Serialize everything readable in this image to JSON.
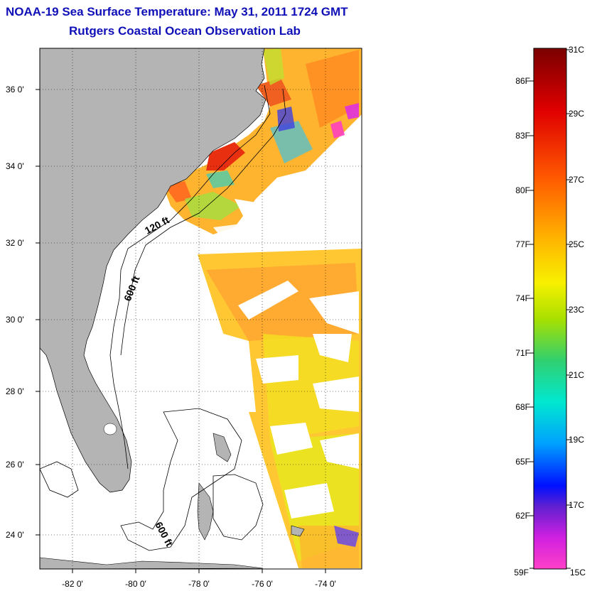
{
  "title": {
    "line1": "NOAA-19 Sea Surface Temperature:  May 31, 2011 1724 GMT",
    "line2": "Rutgers Coastal Ocean Observation Lab"
  },
  "map": {
    "lat_labels": [
      "36 0'",
      "34 0'",
      "32 0'",
      "30 0'",
      "28 0'",
      "26 0'",
      "24 0'"
    ],
    "lon_labels": [
      "-82 0'",
      "-80 0'",
      "-78 0'",
      "-76 0'",
      "-74 0'"
    ],
    "contour_labels": [
      "120 ft",
      "600 ft",
      "600 ft"
    ],
    "land_color": "#b4b4b4",
    "gridlines": "dotted"
  },
  "colorbar": {
    "fahrenheit": [
      "86F",
      "83F",
      "80F",
      "77F",
      "74F",
      "71F",
      "68F",
      "65F",
      "62F",
      "59F"
    ],
    "celsius": [
      "31C",
      "29C",
      "27C",
      "25C",
      "23C",
      "21C",
      "19C",
      "17C",
      "15C"
    ],
    "gradient": [
      "#7a0000",
      "#c80000",
      "#ff2000",
      "#ff7000",
      "#ffc000",
      "#f8f000",
      "#a0e000",
      "#40d040",
      "#00e0c0",
      "#00c8ff",
      "#0070ff",
      "#0000ff",
      "#8020d0",
      "#e020e0",
      "#ff40c0"
    ]
  }
}
